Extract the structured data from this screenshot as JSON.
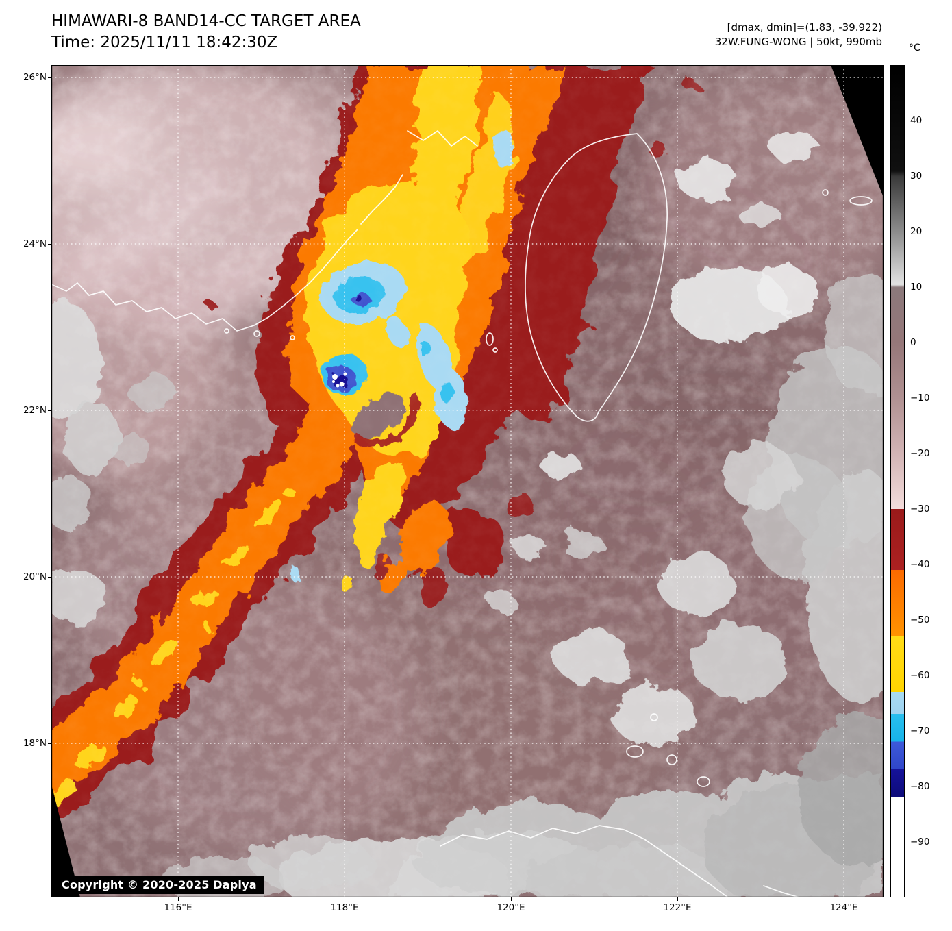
{
  "header": {
    "title": "HIMAWARI-8 BAND14-CC TARGET AREA",
    "time_label": "Time: 2025/11/11 18:42:30Z",
    "dmax_dmin": "[dmax, dmin]=(1.83, -39.922)",
    "storm_info": "32W.FUNG-WONG | 50kt, 990mb"
  },
  "map": {
    "lat_labels": [
      "26°N",
      "24°N",
      "22°N",
      "20°N",
      "18°N"
    ],
    "lon_labels": [
      "116°E",
      "118°E",
      "120°E",
      "122°E",
      "124°E"
    ],
    "copyright": "Copyright © 2020-2025 Dapiya"
  },
  "colorbar": {
    "unit": "°C",
    "ticks": [
      40,
      30,
      20,
      10,
      0,
      -10,
      -20,
      -30,
      -40,
      -50,
      -60,
      -70,
      -80,
      -90
    ],
    "domain": [
      50,
      -100
    ],
    "stops": [
      {
        "t": 50,
        "c": "#000000"
      },
      {
        "t": 31,
        "c": "#101010"
      },
      {
        "t": 30,
        "c": "#3a3a3a"
      },
      {
        "t": 20,
        "c": "#8c8c8c"
      },
      {
        "t": 10.5,
        "c": "#e2e2e2"
      },
      {
        "t": 10,
        "c": "#8b797b"
      },
      {
        "t": 0,
        "c": "#957779"
      },
      {
        "t": -10,
        "c": "#b09192"
      },
      {
        "t": -20,
        "c": "#d2b4b5"
      },
      {
        "t": -30,
        "c": "#f3dcdb"
      },
      {
        "t": -30,
        "c": "#9a1a1a"
      },
      {
        "t": -41,
        "c": "#ab2121"
      },
      {
        "t": -41,
        "c": "#fb6a00"
      },
      {
        "t": -53,
        "c": "#ff9300"
      },
      {
        "t": -53,
        "c": "#ffdc17"
      },
      {
        "t": -63,
        "c": "#ffd400"
      },
      {
        "t": -63,
        "c": "#a8daf3"
      },
      {
        "t": -67,
        "c": "#9fd3f0"
      },
      {
        "t": -67,
        "c": "#29bfee"
      },
      {
        "t": -72,
        "c": "#17b3e9"
      },
      {
        "t": -72,
        "c": "#3d59d9"
      },
      {
        "t": -77,
        "c": "#2f46c9"
      },
      {
        "t": -77,
        "c": "#15129a"
      },
      {
        "t": -82,
        "c": "#0d0b79"
      },
      {
        "t": -82,
        "c": "#ffffff"
      },
      {
        "t": -100,
        "c": "#ffffff"
      }
    ]
  }
}
